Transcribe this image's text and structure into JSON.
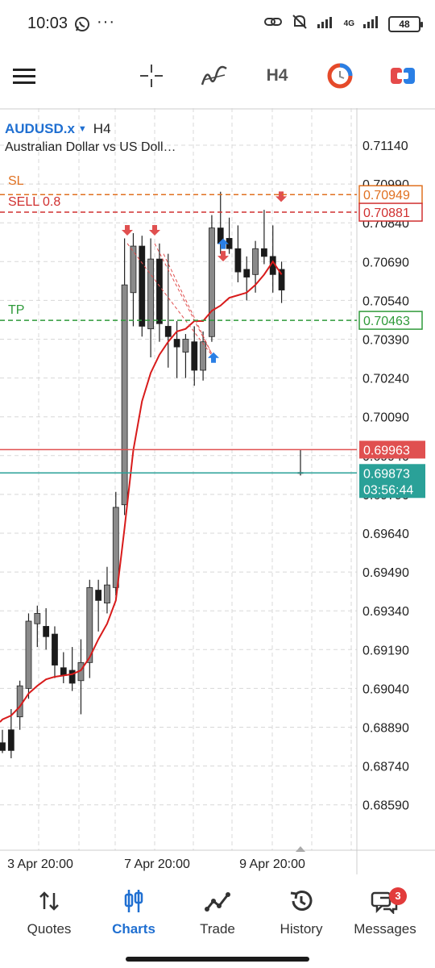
{
  "status_bar": {
    "time": "10:03",
    "overflow": "···",
    "network": "4G",
    "battery": "48",
    "icons": [
      "whatsapp-icon",
      "link-icon",
      "mute-icon",
      "signal-icon",
      "wifi-icon",
      "battery-icon"
    ]
  },
  "toolbar": {
    "timeframe": "H4",
    "icons": [
      "menu-icon",
      "crosshair-icon",
      "indicators-icon",
      "timeframe-label",
      "one-click-trading-icon",
      "trade-panel-icon"
    ]
  },
  "chart": {
    "symbol": "AUDUSD.x",
    "timeframe": "H4",
    "description": "Australian Dollar vs US Doll…",
    "colors": {
      "sl": "#e07020",
      "sell": "#d03030",
      "tp": "#2f9a3a",
      "bid": "#e05050",
      "ask": "#2aa198",
      "ma": "#d81b1b"
    },
    "levels": {
      "sl": {
        "label": "SL",
        "price_label": "0.70949",
        "price": 0.70949
      },
      "sell": {
        "label": "SELL 0.8",
        "price_label": "0.70881",
        "price": 0.70881
      },
      "tp": {
        "label": "TP",
        "price_label": "0.70463",
        "price": 0.70463
      },
      "bid": {
        "price_label": "0.69963",
        "price": 0.69963
      },
      "ask": {
        "price_label": "0.69873",
        "price": 0.69873,
        "countdown": "03:56:44"
      }
    },
    "price_axis": [
      "0.71140",
      "0.70990",
      "0.70840",
      "0.70690",
      "0.70540",
      "0.70390",
      "0.70240",
      "0.70090",
      "0.69940",
      "0.69790",
      "0.69640",
      "0.69490",
      "0.69340",
      "0.69190",
      "0.69040",
      "0.68890",
      "0.68740",
      "0.68590"
    ],
    "time_axis": [
      "3 Apr 20:00",
      "7 Apr 20:00",
      "9 Apr 20:00"
    ]
  },
  "chart_data": {
    "type": "candlestick",
    "symbol": "AUDUSD.x",
    "timeframe": "H4",
    "ylim": [
      0.6852,
      0.7121
    ],
    "candles": [
      {
        "o": 0.6883,
        "h": 0.6888,
        "l": 0.6879,
        "c": 0.688
      },
      {
        "o": 0.6888,
        "h": 0.6896,
        "l": 0.6877,
        "c": 0.688
      },
      {
        "o": 0.6893,
        "h": 0.6907,
        "l": 0.6888,
        "c": 0.6905
      },
      {
        "o": 0.6904,
        "h": 0.6933,
        "l": 0.69,
        "c": 0.693
      },
      {
        "o": 0.6929,
        "h": 0.6936,
        "l": 0.692,
        "c": 0.6933
      },
      {
        "o": 0.6928,
        "h": 0.6935,
        "l": 0.6919,
        "c": 0.6924
      },
      {
        "o": 0.6925,
        "h": 0.6928,
        "l": 0.6908,
        "c": 0.6913
      },
      {
        "o": 0.6912,
        "h": 0.6918,
        "l": 0.6906,
        "c": 0.6909
      },
      {
        "o": 0.6911,
        "h": 0.692,
        "l": 0.6903,
        "c": 0.6906
      },
      {
        "o": 0.6907,
        "h": 0.6923,
        "l": 0.6894,
        "c": 0.6914
      },
      {
        "o": 0.6914,
        "h": 0.6946,
        "l": 0.6908,
        "c": 0.6943
      },
      {
        "o": 0.6942,
        "h": 0.6946,
        "l": 0.6926,
        "c": 0.6938
      },
      {
        "o": 0.6937,
        "h": 0.6951,
        "l": 0.6933,
        "c": 0.6944
      },
      {
        "o": 0.6943,
        "h": 0.698,
        "l": 0.694,
        "c": 0.6974
      },
      {
        "o": 0.6975,
        "h": 0.7078,
        "l": 0.6971,
        "c": 0.706
      },
      {
        "o": 0.7057,
        "h": 0.708,
        "l": 0.7044,
        "c": 0.7075
      },
      {
        "o": 0.7075,
        "h": 0.7079,
        "l": 0.704,
        "c": 0.7044
      },
      {
        "o": 0.7043,
        "h": 0.7078,
        "l": 0.7032,
        "c": 0.707
      },
      {
        "o": 0.707,
        "h": 0.7076,
        "l": 0.7038,
        "c": 0.7045
      },
      {
        "o": 0.7044,
        "h": 0.7072,
        "l": 0.7028,
        "c": 0.704
      },
      {
        "o": 0.7039,
        "h": 0.7046,
        "l": 0.7024,
        "c": 0.7036
      },
      {
        "o": 0.7034,
        "h": 0.7041,
        "l": 0.7024,
        "c": 0.7039
      },
      {
        "o": 0.7038,
        "h": 0.7044,
        "l": 0.7021,
        "c": 0.7027
      },
      {
        "o": 0.7027,
        "h": 0.7042,
        "l": 0.7023,
        "c": 0.7038
      },
      {
        "o": 0.704,
        "h": 0.7087,
        "l": 0.7038,
        "c": 0.7082
      },
      {
        "o": 0.7082,
        "h": 0.7096,
        "l": 0.7072,
        "c": 0.7076
      },
      {
        "o": 0.7078,
        "h": 0.7086,
        "l": 0.7072,
        "c": 0.7074
      },
      {
        "o": 0.7074,
        "h": 0.7083,
        "l": 0.7061,
        "c": 0.7065
      },
      {
        "o": 0.7066,
        "h": 0.7071,
        "l": 0.7054,
        "c": 0.7063
      },
      {
        "o": 0.7064,
        "h": 0.7077,
        "l": 0.7057,
        "c": 0.7074
      },
      {
        "o": 0.7074,
        "h": 0.7089,
        "l": 0.7068,
        "c": 0.7071
      },
      {
        "o": 0.7071,
        "h": 0.7083,
        "l": 0.7057,
        "c": 0.7064
      },
      {
        "o": 0.7066,
        "h": 0.7069,
        "l": 0.7053,
        "c": 0.7058
      }
    ],
    "last_candle": {
      "o": 0.69873,
      "h": 0.69963,
      "l": 0.69863,
      "c": 0.69873
    },
    "moving_average": [
      0.6892,
      0.68935,
      0.6897,
      0.6902,
      0.6905,
      0.69075,
      0.69085,
      0.6909,
      0.69095,
      0.6911,
      0.6916,
      0.6923,
      0.6929,
      0.6938,
      0.6966,
      0.6996,
      0.7015,
      0.7026,
      0.7033,
      0.7038,
      0.7042,
      0.7043,
      0.7046,
      0.7046,
      0.705,
      0.7052,
      0.7055,
      0.7056,
      0.7057,
      0.706,
      0.7064,
      0.7069,
      0.7064
    ]
  },
  "tabs": [
    {
      "label": "Quotes",
      "icon": "quotes-icon"
    },
    {
      "label": "Charts",
      "icon": "charts-icon",
      "active": true
    },
    {
      "label": "Trade",
      "icon": "trade-icon"
    },
    {
      "label": "History",
      "icon": "history-icon"
    },
    {
      "label": "Messages",
      "icon": "messages-icon",
      "badge": "3"
    }
  ]
}
